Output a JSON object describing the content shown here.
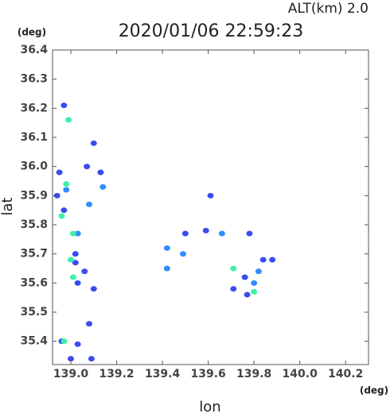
{
  "chart_data": {
    "type": "scatter",
    "title": "2020/01/06 22:59:23",
    "subtitle": "ALT(km) 2.0",
    "x_label": "lon",
    "y_label": "lat",
    "x_unit": "(deg)",
    "y_unit": "(deg)",
    "xlim": [
      138.92,
      140.3
    ],
    "ylim": [
      35.32,
      36.4
    ],
    "xticks": [
      {
        "value": 139,
        "label": "139.0"
      },
      139.2,
      139.4,
      139.6,
      139.8,
      {
        "value": 140,
        "label": "140.0"
      },
      140.2
    ],
    "yticks": [
      35.4,
      35.5,
      35.6,
      35.7,
      35.8,
      35.9,
      {
        "value": 36,
        "label": "36.0"
      },
      36.1,
      36.2,
      36.3,
      36.4
    ],
    "grid": false,
    "series": [
      {
        "color": "#3a4cf0",
        "x": [
          138.97,
          138.95,
          138.94,
          138.97,
          139.02,
          139.02,
          139.06,
          139.03,
          139.1,
          139.08,
          138.96,
          139.03,
          139.07,
          139.13,
          139.1,
          139.5,
          139.59,
          139.61,
          139.78,
          139.84,
          139.88,
          139.76,
          139.77,
          139.71,
          139.09,
          139.0
        ],
        "y": [
          36.21,
          35.98,
          35.9,
          35.85,
          35.7,
          35.67,
          35.64,
          35.6,
          35.58,
          35.46,
          35.4,
          35.39,
          36.0,
          35.98,
          36.08,
          35.77,
          35.78,
          35.9,
          35.77,
          35.68,
          35.68,
          35.62,
          35.56,
          35.58,
          35.34,
          35.34
        ]
      },
      {
        "color": "#2f8cff",
        "x": [
          138.98,
          139.03,
          139.42,
          139.49,
          139.42,
          139.82,
          139.66,
          139.14,
          139.08,
          139.8
        ],
        "y": [
          35.92,
          35.77,
          35.72,
          35.7,
          35.65,
          35.64,
          35.77,
          35.93,
          35.87,
          35.6
        ]
      },
      {
        "color": "#3ef0a8",
        "x": [
          138.99,
          138.98,
          139.01,
          139.0,
          139.01,
          138.97,
          139.8,
          139.71,
          138.96
        ],
        "y": [
          36.16,
          35.94,
          35.77,
          35.68,
          35.62,
          35.4,
          35.57,
          35.65,
          35.83
        ]
      }
    ]
  }
}
